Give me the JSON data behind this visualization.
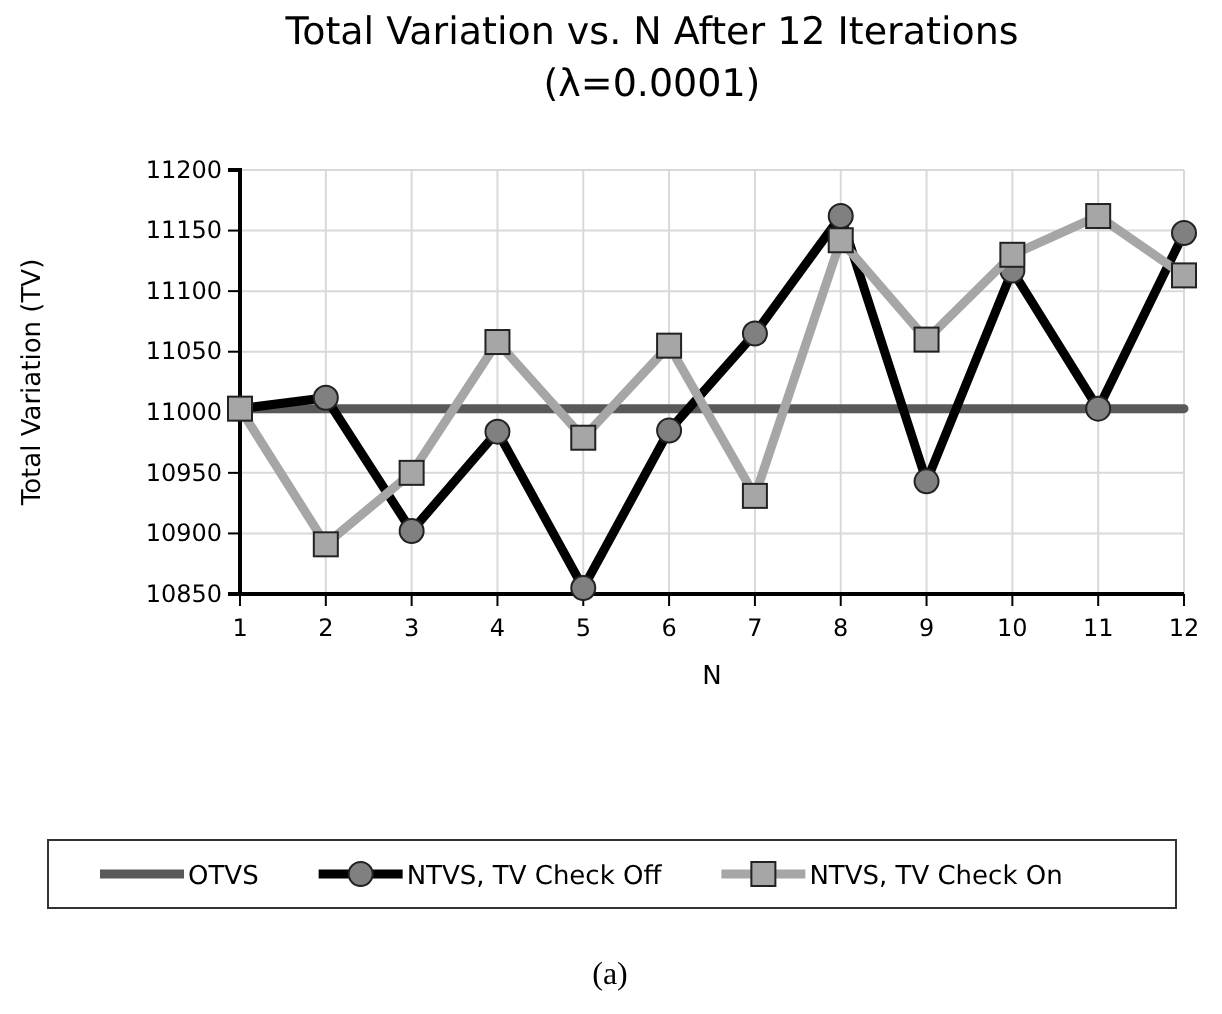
{
  "chart_data": {
    "type": "line",
    "title": "Total Variation vs. N After 12 Iterations\n(λ=0.0001)",
    "xlabel": "N",
    "ylabel": "Total Variation (TV)",
    "x": [
      1,
      2,
      3,
      4,
      5,
      6,
      7,
      8,
      9,
      10,
      11,
      12
    ],
    "xlim": [
      1,
      12
    ],
    "xticks": [
      1,
      2,
      3,
      4,
      5,
      6,
      7,
      8,
      9,
      10,
      11,
      12
    ],
    "series": [
      {
        "name": "OTVS",
        "color": "#595959",
        "marker": "none",
        "values": [
          11003,
          11003,
          11003,
          11003,
          11003,
          11003,
          11003,
          11003,
          11003,
          11003,
          11003,
          11003
        ]
      },
      {
        "name": "NTVS, TV Check Off",
        "color": "#000000",
        "marker": "circle",
        "values": [
          11003,
          11012,
          10902,
          10984,
          10855,
          10985,
          11065,
          11162,
          10943,
          11117,
          11003,
          11148
        ]
      },
      {
        "name": "NTVS, TV Check On",
        "color": "#a6a6a6",
        "marker": "square",
        "values": [
          11003,
          10891,
          10950,
          11058,
          10979,
          11055,
          10931,
          11142,
          11060,
          11130,
          11162,
          11113
        ]
      }
    ],
    "ylim": [
      10850,
      11200
    ],
    "yticks": [
      10850,
      10900,
      10950,
      11000,
      11050,
      11100,
      11150,
      11200
    ],
    "grid": true,
    "legend": "bottom",
    "annotations": [
      "(a)"
    ]
  }
}
